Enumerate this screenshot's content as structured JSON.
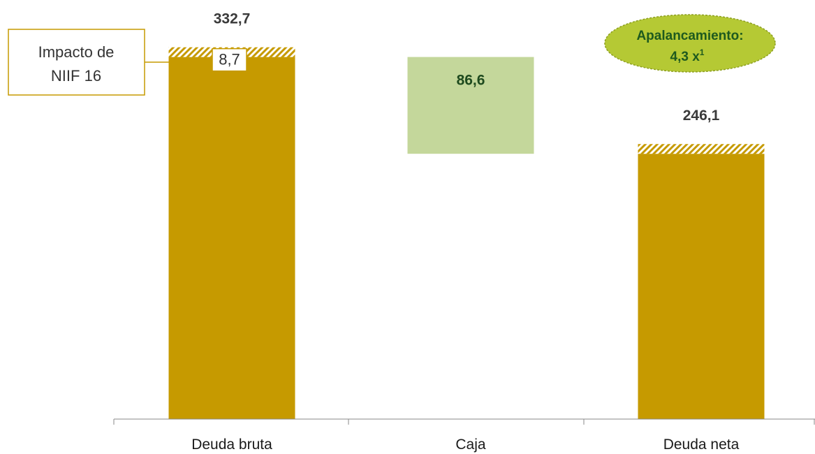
{
  "chart_data": {
    "type": "bar",
    "subtype": "waterfall",
    "categories": [
      "Deuda bruta",
      "Caja",
      "Deuda neta"
    ],
    "values": [
      332.7,
      86.6,
      246.1
    ],
    "value_labels": [
      "332,7",
      "86,6",
      "246,1"
    ],
    "ylim": [
      0,
      375
    ],
    "grid": false,
    "bar_colors": [
      "#c69a00",
      "#c4d79b",
      "#c69a00"
    ],
    "niif16_impact": {
      "value": 8.7,
      "label": "8,7",
      "callout_line1": "Impacto de",
      "callout_line2": "NIIF 16",
      "applies_to": [
        "Deuda bruta",
        "Deuda neta"
      ]
    },
    "badge": {
      "line1": "Apalancamiento:",
      "line2": "4,3 x",
      "superscript": "1",
      "fill": "#b5c934",
      "text_color": "#1e5a1e"
    },
    "value_label_colors": [
      "#3a3a3a",
      "#1e4a1e",
      "#3a3a3a"
    ]
  }
}
